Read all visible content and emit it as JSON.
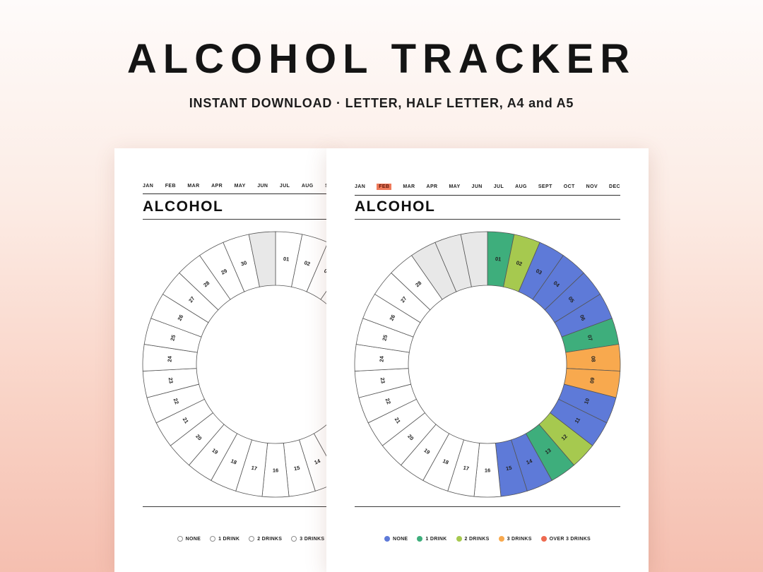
{
  "hero": {
    "title": "ALCOHOL TRACKER",
    "subtitle": "INSTANT DOWNLOAD · LETTER, HALF LETTER, A4 and A5"
  },
  "months": [
    "JAN",
    "FEB",
    "MAR",
    "APR",
    "MAY",
    "JUN",
    "JUL",
    "AUG",
    "SEPT",
    "OCT",
    "NOV",
    "DEC"
  ],
  "status_colors": {
    "empty": "#ffffff",
    "inactive": "#e8e8e8",
    "none": "#5e7ad8",
    "1_drink": "#3eae7c",
    "2_drinks": "#a6c94f",
    "3_drinks": "#f8a94e",
    "over_3_drinks": "#ee6a50"
  },
  "wheel_stroke": "#555555",
  "active_month_highlight": {
    "background": "#ef7a5a",
    "text": "#5c150a"
  },
  "pages": [
    {
      "name": "blank-example",
      "heading": "ALCOHOL",
      "active_month": "",
      "legend": [
        {
          "label": "NONE",
          "status": "empty"
        },
        {
          "label": "1 DRINK",
          "status": "empty"
        },
        {
          "label": "2 DRINKS",
          "status": "empty"
        },
        {
          "label": "3 DRINKS",
          "status": "empty"
        }
      ],
      "chart_data": {
        "type": "radial-day-wheel",
        "days": 31,
        "start_angle_deg": -90,
        "day_status": {
          "31": "inactive"
        }
      }
    },
    {
      "name": "filled-example",
      "heading": "ALCOHOL",
      "active_month": "FEB",
      "legend": [
        {
          "label": "NONE",
          "status": "none"
        },
        {
          "label": "1 DRINK",
          "status": "1_drink"
        },
        {
          "label": "2 DRINKS",
          "status": "2_drinks"
        },
        {
          "label": "3 DRINKS",
          "status": "3_drinks"
        },
        {
          "label": "OVER 3 DRINKS",
          "status": "over_3_drinks"
        }
      ],
      "chart_data": {
        "type": "radial-day-wheel",
        "days": 31,
        "start_angle_deg": -90,
        "day_status": {
          "1": "1_drink",
          "2": "2_drinks",
          "3": "none",
          "4": "none",
          "5": "none",
          "6": "none",
          "7": "1_drink",
          "8": "3_drinks",
          "9": "3_drinks",
          "10": "none",
          "11": "none",
          "12": "2_drinks",
          "13": "1_drink",
          "14": "none",
          "15": "none",
          "29": "inactive",
          "30": "inactive",
          "31": "inactive"
        }
      }
    }
  ]
}
